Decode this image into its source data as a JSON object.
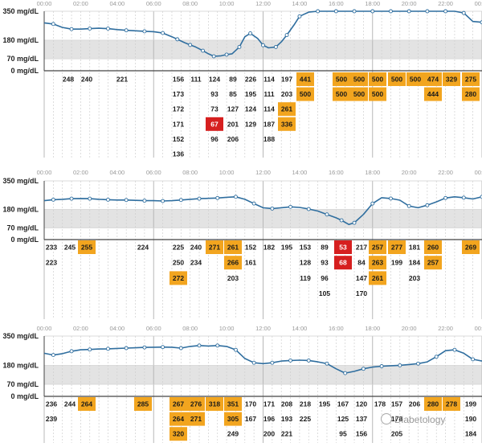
{
  "chart_data": [
    {
      "type": "line",
      "panel": "top",
      "x_ticks": [
        "00:00",
        "02:00",
        "04:00",
        "06:00",
        "08:00",
        "10:00",
        "12:00",
        "14:00",
        "16:00",
        "18:00",
        "20:00",
        "22:00",
        "00:00"
      ],
      "y_ticks": [
        "350 mg/dL",
        "180 mg/dL",
        "70 mg/dL",
        "0 mg/dL"
      ],
      "y_tick_values": [
        350,
        180,
        70,
        0
      ],
      "ylim": [
        0,
        350
      ],
      "target_range": [
        70,
        180
      ],
      "grid": true,
      "series": [
        {
          "x": [
            0,
            0.5,
            1,
            1.5,
            2,
            2.5,
            3,
            3.5,
            4,
            4.5,
            5,
            5.5,
            6,
            6.5,
            7,
            7.3,
            7.7,
            8,
            8.3,
            8.7,
            9,
            9.3,
            9.7,
            10,
            10.3,
            10.7,
            11,
            11.3,
            11.7,
            12,
            12.3,
            12.7,
            13,
            13.3,
            13.7,
            14,
            14.5,
            15,
            15.5,
            16,
            16.5,
            17,
            17.5,
            18,
            18.5,
            19,
            19.5,
            20,
            20.5,
            21,
            21.5,
            22,
            22.5,
            23,
            23.5,
            24
          ],
          "y": [
            282,
            275,
            255,
            245,
            245,
            248,
            250,
            248,
            242,
            238,
            235,
            232,
            230,
            222,
            200,
            185,
            165,
            152,
            140,
            118,
            100,
            85,
            88,
            95,
            100,
            140,
            200,
            220,
            190,
            150,
            135,
            140,
            170,
            210,
            270,
            320,
            345,
            350,
            350,
            350,
            350,
            350,
            350,
            350,
            350,
            350,
            350,
            350,
            350,
            350,
            350,
            350,
            350,
            340,
            290,
            285
          ]
        }
      ],
      "readings_columns": [
        [
          248
        ],
        [
          240
        ],
        [
          221
        ],
        [
          156,
          173,
          172,
          171,
          152,
          136
        ],
        [
          111
        ],
        [
          124,
          93,
          73,
          67,
          96
        ],
        [
          89,
          85,
          127,
          201,
          206
        ],
        [
          226,
          195,
          124,
          129
        ],
        [
          114,
          111,
          114,
          187,
          188
        ],
        [
          197,
          203,
          261,
          336
        ],
        [
          441,
          500
        ],
        [
          500,
          500
        ],
        [
          500,
          500
        ],
        [
          500,
          500
        ],
        [
          500
        ],
        [
          500
        ],
        [
          474,
          444
        ],
        [
          329
        ],
        [
          275,
          280
        ]
      ]
    },
    {
      "type": "line",
      "panel": "middle",
      "x_ticks": [
        "00:00",
        "02:00",
        "04:00",
        "06:00",
        "08:00",
        "10:00",
        "12:00",
        "14:00",
        "16:00",
        "18:00",
        "20:00",
        "22:00",
        "00:00"
      ],
      "y_ticks": [
        "350 mg/dL",
        "180 mg/dL",
        "70 mg/dL",
        "0 mg/dL"
      ],
      "y_tick_values": [
        350,
        180,
        70,
        0
      ],
      "ylim": [
        0,
        350
      ],
      "target_range": [
        70,
        180
      ],
      "grid": true,
      "series": [
        {
          "x": [
            0,
            0.5,
            1,
            1.5,
            2,
            2.5,
            3,
            3.5,
            4,
            4.5,
            5,
            5.5,
            6,
            6.5,
            7,
            7.5,
            8,
            8.5,
            9,
            9.5,
            10,
            10.5,
            11,
            11.5,
            12,
            12.5,
            13,
            13.5,
            14,
            14.5,
            15,
            15.5,
            16,
            16.3,
            16.7,
            17,
            17.5,
            18,
            18.5,
            19,
            19.5,
            20,
            20.5,
            21,
            21.5,
            22,
            22.5,
            23,
            23.5,
            24
          ],
          "y": [
            232,
            238,
            240,
            244,
            245,
            244,
            240,
            238,
            236,
            236,
            234,
            232,
            232,
            230,
            232,
            236,
            240,
            244,
            246,
            248,
            252,
            255,
            240,
            215,
            190,
            185,
            190,
            195,
            192,
            182,
            170,
            150,
            130,
            115,
            90,
            100,
            150,
            215,
            250,
            245,
            235,
            200,
            190,
            205,
            225,
            248,
            255,
            250,
            242,
            255
          ]
        }
      ],
      "readings_columns": [
        [
          233,
          223
        ],
        [
          245
        ],
        [
          255
        ],
        [
          224
        ],
        [
          225,
          250,
          272
        ],
        [
          240,
          234
        ],
        [
          271
        ],
        [
          261,
          266,
          203
        ],
        [
          152,
          161
        ],
        [
          182
        ],
        [
          195
        ],
        [
          153,
          128,
          119
        ],
        [
          89,
          93,
          96,
          105
        ],
        [
          53,
          68
        ],
        [
          217,
          84,
          147,
          170
        ],
        [
          257,
          263,
          261
        ],
        [
          277,
          199
        ],
        [
          181,
          184,
          203
        ],
        [
          260,
          257
        ],
        [
          269
        ]
      ]
    },
    {
      "type": "line",
      "panel": "bottom",
      "x_ticks": [
        "00:00",
        "02:00",
        "04:00",
        "06:00",
        "08:00",
        "10:00",
        "12:00",
        "14:00",
        "16:00",
        "18:00",
        "20:00",
        "22:00",
        "00:00"
      ],
      "y_ticks": [
        "350 mg/dL",
        "180 mg/dL",
        "70 mg/dL",
        "0 mg/dL"
      ],
      "y_tick_values": [
        350,
        180,
        70,
        0
      ],
      "ylim": [
        0,
        350
      ],
      "target_range": [
        70,
        180
      ],
      "grid": true,
      "series": [
        {
          "x": [
            0,
            0.5,
            1,
            1.5,
            2,
            2.5,
            3,
            3.5,
            4,
            4.5,
            5,
            5.5,
            6,
            6.5,
            7,
            7.5,
            8,
            8.5,
            9,
            9.5,
            10,
            10.5,
            11,
            11.5,
            12,
            12.5,
            13,
            13.5,
            14,
            14.5,
            15,
            15.5,
            16,
            16.5,
            17,
            17.5,
            18,
            18.5,
            19,
            19.5,
            20,
            20.5,
            21,
            21.5,
            22,
            22.5,
            23,
            23.5,
            24
          ],
          "y": [
            250,
            240,
            248,
            262,
            270,
            272,
            275,
            276,
            278,
            280,
            282,
            284,
            285,
            286,
            285,
            280,
            290,
            295,
            292,
            295,
            290,
            270,
            220,
            195,
            190,
            195,
            205,
            208,
            210,
            208,
            200,
            190,
            160,
            135,
            145,
            160,
            170,
            175,
            178,
            180,
            185,
            190,
            200,
            230,
            265,
            270,
            250,
            215,
            205
          ]
        }
      ],
      "readings_columns": [
        [
          236,
          239
        ],
        [
          244
        ],
        [
          264
        ],
        [
          285
        ],
        [
          267,
          264,
          320
        ],
        [
          276,
          271
        ],
        [
          318
        ],
        [
          351,
          305,
          249
        ],
        [
          170,
          167
        ],
        [
          171,
          196,
          200
        ],
        [
          208,
          193,
          221
        ],
        [
          218,
          225
        ],
        [
          195
        ],
        [
          167,
          125,
          95
        ],
        [
          120,
          137,
          156
        ],
        [
          178
        ],
        [
          157,
          178,
          205
        ],
        [
          206
        ],
        [
          280
        ],
        [
          278
        ],
        [
          199,
          190,
          184
        ]
      ]
    }
  ],
  "watermark": "Diabetology"
}
